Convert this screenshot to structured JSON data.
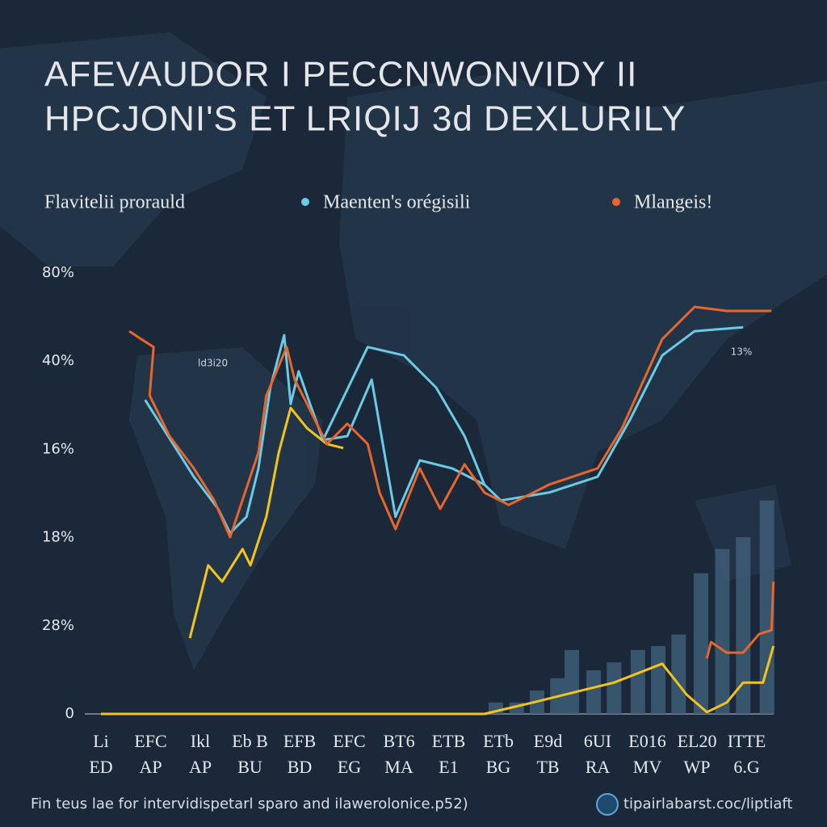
{
  "chart_data": {
    "type": "line",
    "title": [
      "AFEVAUDOR I PECCNWONVIDY II",
      "HPCJONI'S ET LRIQIJ 3d DEXLURILY"
    ],
    "footer": "Fin teus lae for intervidispetarl sparo and ilawerolonice.p52)",
    "source": "tipairlabarst.coc/liptiaft",
    "annotations": [
      "13%",
      "ld3i20"
    ],
    "y_axis_labels": [
      "80%",
      "40%",
      "16%",
      "18%",
      "28%",
      "0"
    ],
    "categories": [
      "Li",
      "EFC",
      "Ikl",
      "Eb B",
      "EFB",
      "EFC",
      "BT6",
      "ETB",
      "ETb",
      "E9d",
      "6UI",
      "E016",
      "EL20",
      "ITTE"
    ],
    "category_sublabels": [
      "ED",
      "AP",
      "AP",
      "BU",
      "BD",
      "EG",
      "MA",
      "E1",
      "BG",
      "TB",
      "RA",
      "MV",
      "WP",
      "6.G"
    ],
    "xlim": [
      -0.5,
      13.64
    ],
    "ylim": [
      0,
      100
    ],
    "series": [
      {
        "name": "Flavitelii prorauld",
        "color": "#f2c41c",
        "x": [
          1.79,
          2.16,
          2.44,
          2.85,
          3.01,
          3.33,
          3.58,
          3.82,
          4.15,
          4.55,
          4.88,
          null,
          0,
          7.72,
          8.7,
          9.67,
          10.33,
          11.3,
          11.79,
          12.2,
          12.6,
          12.93,
          13.33,
          13.54
        ],
        "values": [
          17.2,
          33.7,
          30.0,
          37.4,
          33.7,
          44.7,
          59.3,
          69.4,
          64.8,
          61.2,
          60.3,
          null,
          0,
          0,
          2.6,
          5.3,
          7.1,
          11.4,
          4.4,
          0.4,
          2.6,
          7.1,
          7.1,
          15.4
        ]
      },
      {
        "name": "Maenten's orégisili",
        "color": "#6ccbe4",
        "x": [
          0.89,
          1.87,
          2.36,
          2.6,
          2.93,
          3.17,
          3.41,
          3.69,
          3.82,
          3.98,
          4.15,
          4.47,
          4.96,
          5.45,
          5.93,
          6.42,
          7.07,
          7.72,
          8.05,
          9.02,
          10.0,
          10.65,
          11.3,
          11.95,
          12.93,
          null,
          4.47,
          5.37,
          6.1,
          6.75,
          7.32,
          7.72
        ],
        "values": [
          71.2,
          53.8,
          46.5,
          41.0,
          44.7,
          55.7,
          74.0,
          85.9,
          70.3,
          77.7,
          72.2,
          62.1,
          63.0,
          75.8,
          44.7,
          57.5,
          55.7,
          52.0,
          48.4,
          50.2,
          53.8,
          66.7,
          81.3,
          86.8,
          87.7,
          null,
          62.1,
          83.2,
          81.3,
          74.0,
          63.0,
          52.0
        ]
      },
      {
        "name": "Mlangeis!",
        "color": "#e8662c",
        "x": [
          0.57,
          0.81,
          1.06,
          0.98,
          1.38,
          1.87,
          2.28,
          2.6,
          3.17,
          3.33,
          3.74,
          3.9,
          4.15,
          4.55,
          4.96,
          5.37,
          5.61,
          5.93,
          6.42,
          6.83,
          7.32,
          7.72,
          8.21,
          9.02,
          10.0,
          10.49,
          11.3,
          11.95,
          12.6,
          13.5,
          null,
          12.2,
          12.28,
          12.6,
          12.93,
          13.25,
          13.5,
          13.54
        ],
        "values": [
          86.8,
          85.0,
          83.2,
          72.2,
          63.0,
          55.7,
          48.4,
          40.1,
          59.3,
          72.2,
          83.2,
          75.8,
          70.3,
          61.2,
          65.8,
          61.2,
          50.2,
          41.9,
          55.7,
          46.5,
          56.6,
          50.2,
          47.4,
          52.0,
          55.7,
          64.8,
          85.0,
          92.3,
          91.4,
          91.4,
          null,
          12.6,
          16.3,
          13.9,
          13.9,
          18.1,
          19.0,
          30.0
        ]
      }
    ],
    "bars": {
      "color": "#3e5d78",
      "x": [
        7.95,
        8.37,
        8.78,
        9.19,
        9.48,
        9.92,
        10.33,
        10.81,
        11.22,
        11.63,
        12.08,
        12.51,
        12.93,
        13.41
      ],
      "values": [
        2.6,
        2.6,
        5.3,
        8.1,
        14.5,
        9.9,
        11.7,
        14.5,
        15.4,
        18.0,
        31.9,
        37.4,
        40.1,
        48.4
      ]
    }
  }
}
